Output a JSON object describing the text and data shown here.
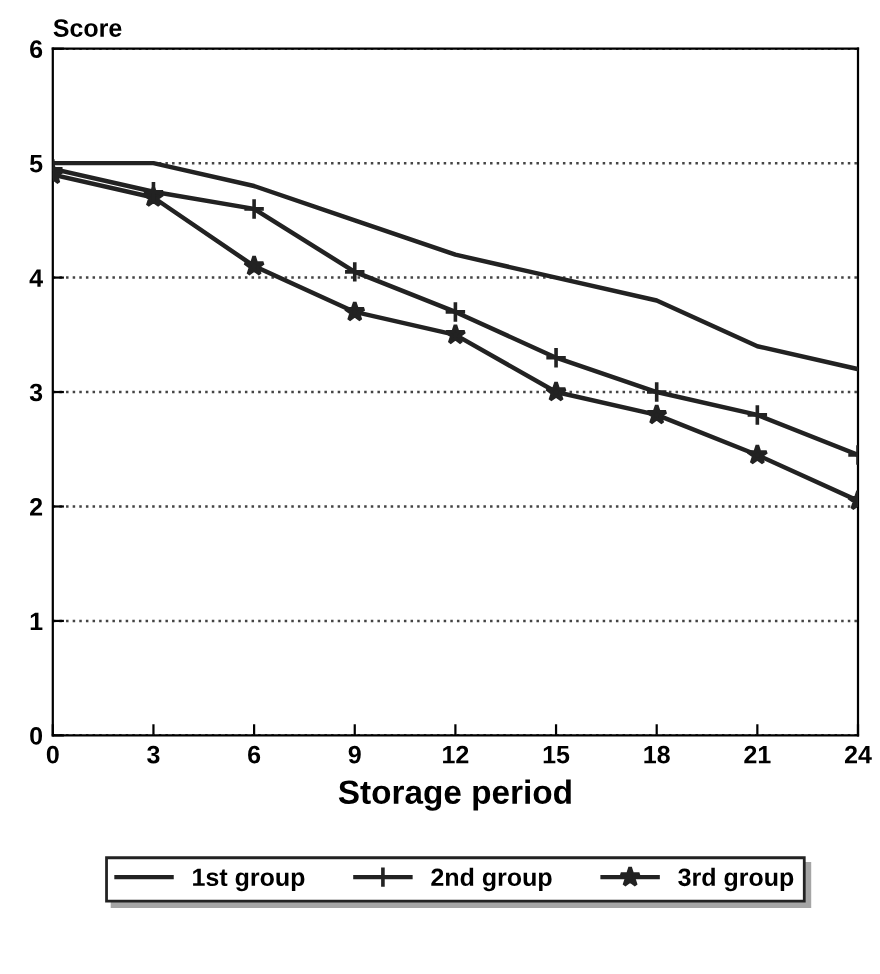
{
  "chart_data": {
    "type": "line",
    "ylabel": "Score",
    "xlabel": "Storage period",
    "x": [
      0,
      3,
      6,
      9,
      12,
      15,
      18,
      21,
      24
    ],
    "series": [
      {
        "name": "1st group",
        "color": "#222222",
        "marker": "none",
        "values": [
          5.0,
          5.0,
          4.8,
          4.5,
          4.2,
          4.0,
          3.8,
          3.4,
          3.2
        ]
      },
      {
        "name": "2nd group",
        "color": "#222222",
        "marker": "cross",
        "values": [
          4.95,
          4.75,
          4.6,
          4.05,
          3.7,
          3.3,
          3.0,
          2.8,
          2.45
        ]
      },
      {
        "name": "3rd group",
        "color": "#222222",
        "marker": "star",
        "values": [
          4.9,
          4.7,
          4.1,
          3.7,
          3.5,
          3.0,
          2.8,
          2.45,
          2.05
        ]
      }
    ],
    "xlim": [
      0,
      24
    ],
    "xticks": [
      0,
      3,
      6,
      9,
      12,
      15,
      18,
      21,
      24
    ],
    "ylim": [
      0,
      6
    ],
    "yticks": [
      0,
      1,
      2,
      3,
      4,
      5,
      6
    ],
    "grid": "y",
    "legend": "bottom",
    "line_style": "solid"
  }
}
